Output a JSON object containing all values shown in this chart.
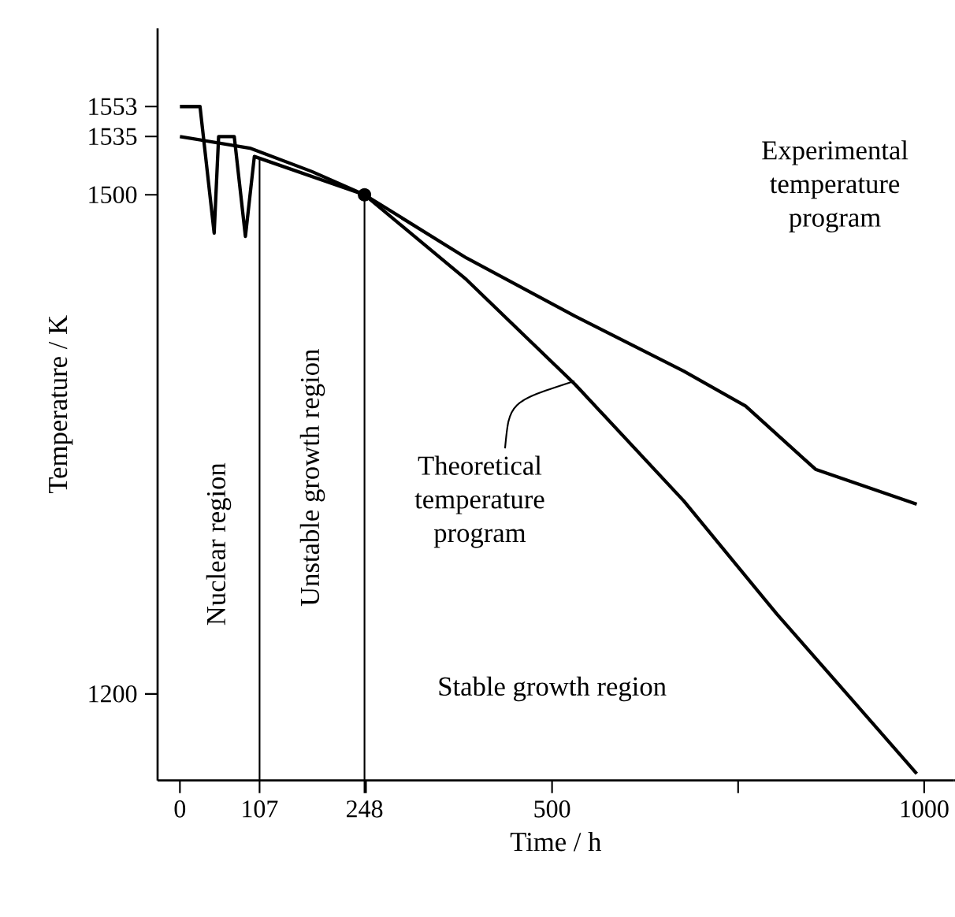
{
  "chart_data": {
    "type": "line",
    "xlabel": "Time / h",
    "ylabel": "Temperature / K",
    "xlim": [
      -30,
      1040
    ],
    "ylim": [
      1148,
      1600
    ],
    "xticks": [
      0,
      107,
      248,
      {
        "value": 250,
        "label": null
      },
      500,
      {
        "value": 750,
        "label": null
      },
      1000
    ],
    "yticks": [
      1200,
      1500,
      1535,
      1553
    ],
    "series": [
      {
        "color": "#000000",
        "x": [
          0,
          27,
          46,
          52,
          73,
          88,
          100,
          248,
          385,
          531,
          677,
          760,
          854,
          990
        ],
        "values": [
          1553,
          1553,
          1477,
          1535,
          1535,
          1475,
          1523,
          1500,
          1462,
          1427,
          1394,
          1373,
          1335,
          1314
        ]
      },
      {
        "color": "#000000",
        "x": [
          0,
          94,
          177,
          248,
          385,
          531,
          677,
          802,
          906,
          990
        ],
        "values": [
          1535,
          1528,
          1514,
          1500,
          1449,
          1386,
          1316,
          1248,
          1195,
          1152
        ]
      },
      {
        "type": "scatter",
        "color": "#000000",
        "x": [
          248
        ],
        "values": [
          1500
        ]
      }
    ],
    "ref_lines": [
      {
        "axis": "x",
        "value": 107
      },
      {
        "axis": "x",
        "value": 248
      }
    ],
    "annotations": [
      "Nuclear region",
      "Unstable growth region",
      "Stable growth region",
      "Experimental temperature program",
      {
        "text": "Theoretical temperature program",
        "x": 530,
        "y": 1388
      }
    ],
    "grid": false
  }
}
